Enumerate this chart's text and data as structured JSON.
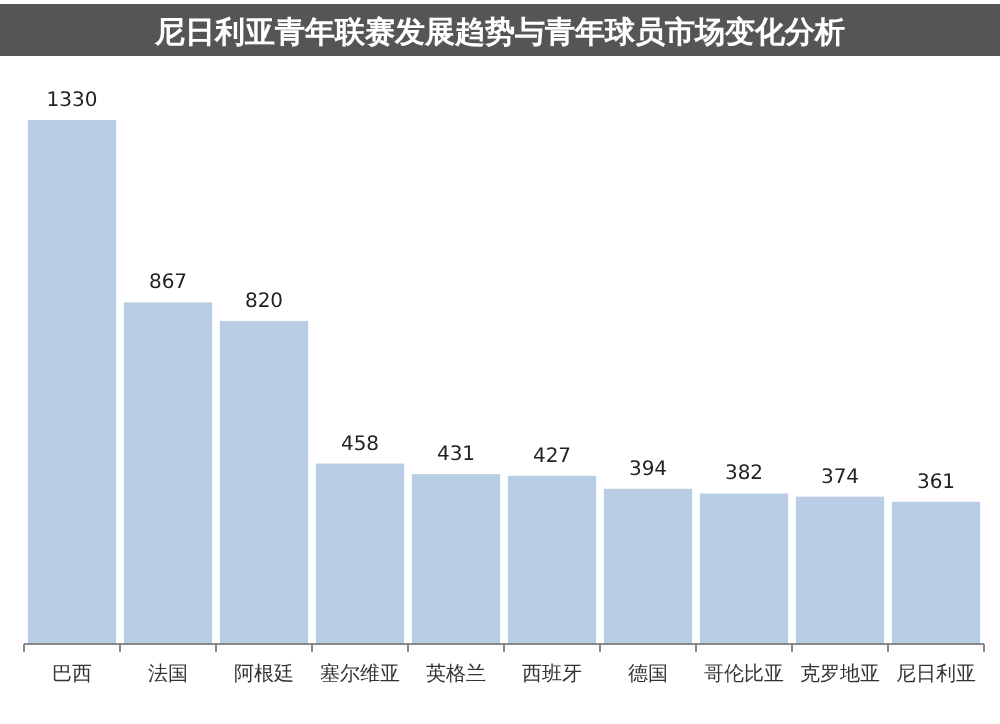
{
  "chart_data": {
    "type": "bar",
    "title": "尼日利亚青年联赛发展趋势与青年球员市场变化分析",
    "categories": [
      "巴西",
      "法国",
      "阿根廷",
      "塞尔维亚",
      "英格兰",
      "西班牙",
      "德国",
      "哥伦比亚",
      "克罗地亚",
      "尼日利亚"
    ],
    "values": [
      1330,
      867,
      820,
      458,
      431,
      427,
      394,
      382,
      374,
      361
    ],
    "color": "#b9cde5",
    "data_labels": true
  }
}
